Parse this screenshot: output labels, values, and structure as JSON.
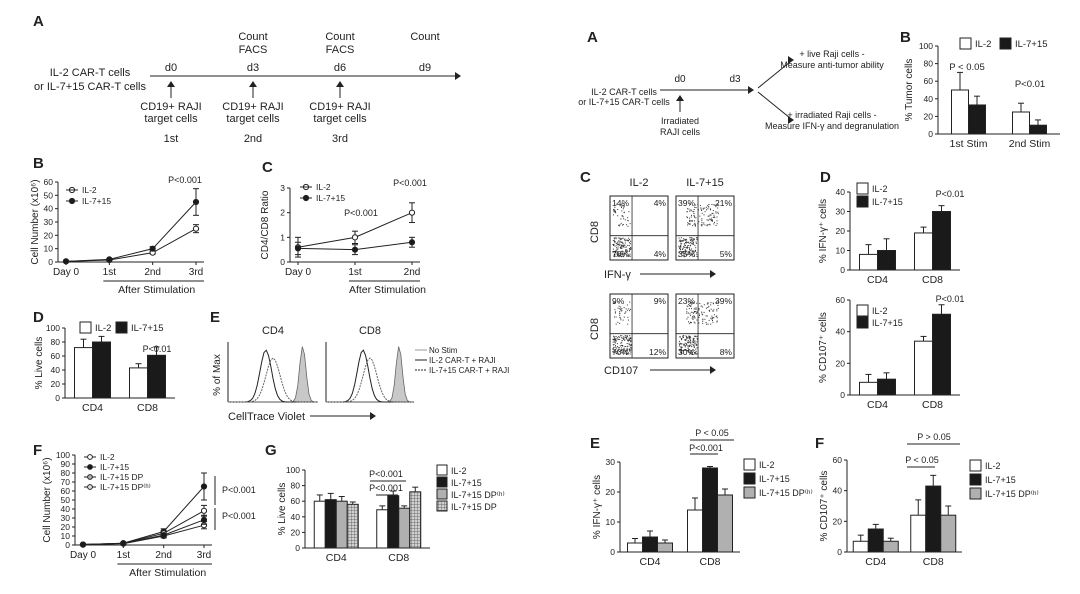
{
  "left": {
    "A": {
      "label": "A",
      "row1": "IL-2 CAR-T cells",
      "row2": "or IL-7+15 CAR-T cells",
      "days": [
        "d0",
        "d3",
        "d6",
        "d9"
      ],
      "tops": [
        "",
        "Count",
        "Count",
        "Count"
      ],
      "tops2": [
        "",
        "FACS",
        "FACS",
        ""
      ],
      "target1": "CD19+ RAJI",
      "target2": "target cells",
      "stims": [
        "1st",
        "2nd",
        "3rd"
      ]
    },
    "B": {
      "label": "B",
      "ylabel": "Cell Number (x10⁶)",
      "xsub": "After Stimulation",
      "legend": [
        "IL-2",
        "IL-7+15"
      ],
      "pval": "P<0.001",
      "chart_data": {
        "type": "line",
        "categories": [
          "Day 0",
          "1st",
          "2nd",
          "3rd"
        ],
        "yticks": [
          0,
          10,
          20,
          30,
          40,
          50,
          60
        ],
        "ylim": [
          0,
          60
        ],
        "series": [
          {
            "name": "IL-2",
            "values": [
              0.5,
              1.5,
              7,
              25
            ],
            "err": [
              0,
              0.5,
              1,
              3
            ]
          },
          {
            "name": "IL-7+15",
            "values": [
              0.5,
              2,
              10,
              45
            ],
            "err": [
              0,
              0.5,
              1.5,
              10
            ]
          }
        ]
      }
    },
    "C": {
      "label": "C",
      "ylabel": "CD4/CD8 Ratio",
      "xsub": "After Stimulation",
      "legend": [
        "IL-2",
        "IL-7+15"
      ],
      "pvals": [
        "P<0.001",
        "P<0.001"
      ],
      "chart_data": {
        "type": "line",
        "categories": [
          "Day 0",
          "1st",
          "2nd"
        ],
        "yticks": [
          0,
          1,
          2,
          3
        ],
        "ylim": [
          0,
          3
        ],
        "series": [
          {
            "name": "IL-2",
            "values": [
              0.6,
              1.0,
              2.0
            ],
            "err": [
              0.4,
              0.25,
              0.4
            ]
          },
          {
            "name": "IL-7+15",
            "values": [
              0.55,
              0.5,
              0.8
            ],
            "err": [
              0.25,
              0.2,
              0.2
            ]
          }
        ]
      }
    },
    "D": {
      "label": "D",
      "ylabel": "% Live cells",
      "legend": [
        "IL-2",
        "IL-7+15"
      ],
      "pval": "P<0.01",
      "chart_data": {
        "type": "bar",
        "categories": [
          "CD4",
          "CD8"
        ],
        "yticks": [
          0,
          20,
          40,
          60,
          80,
          100
        ],
        "ylim": [
          0,
          100
        ],
        "series": [
          {
            "name": "IL-2",
            "values": [
              72,
              43
            ],
            "err": [
              12,
              6
            ]
          },
          {
            "name": "IL-7+15",
            "values": [
              80,
              61
            ],
            "err": [
              8,
              12
            ]
          }
        ]
      }
    },
    "E": {
      "label": "E",
      "ylabel": "% of Max",
      "xlabel": "CellTrace Violet",
      "panels": [
        "CD4",
        "CD8"
      ],
      "legend": [
        "No Stim",
        "IL-2 CAR-T + RAJI",
        "IL-7+15 CAR-T + RAJI"
      ]
    },
    "F": {
      "label": "F",
      "ylabel": "Cell Number (x10⁶)",
      "xsub": "After Stimulation",
      "legend": [
        "IL-2",
        "IL-7+15",
        "IL-7+15 DP",
        "IL-7+15 DP⁽ʰ⁾"
      ],
      "pvals": [
        "P<0.001",
        "P<0.001"
      ],
      "chart_data": {
        "type": "line",
        "categories": [
          "Day 0",
          "1st",
          "2nd",
          "3rd"
        ],
        "yticks": [
          0,
          10,
          20,
          30,
          40,
          50,
          60,
          70,
          80,
          90,
          100
        ],
        "ylim": [
          0,
          100
        ],
        "series": [
          {
            "name": "IL-2",
            "values": [
              0.5,
              1.5,
              10,
              22
            ],
            "err": [
              0,
              0.5,
              2,
              4
            ]
          },
          {
            "name": "IL-7+15",
            "values": [
              0.5,
              2,
              15,
              65
            ],
            "err": [
              0,
              0.5,
              3,
              15
            ]
          },
          {
            "name": "IL-7+15 DP",
            "values": [
              0.5,
              2,
              13,
              38
            ],
            "err": [
              0,
              0.5,
              2,
              6
            ]
          },
          {
            "name": "IL-7+15 DP⁽ʰ⁾",
            "values": [
              0.5,
              1.8,
              11,
              28
            ],
            "err": [
              0,
              0.5,
              2,
              5
            ]
          }
        ]
      }
    },
    "G": {
      "label": "G",
      "ylabel": "% Live cells",
      "legend": [
        "IL-2",
        "IL-7+15",
        "IL-7+15 DP⁽ʰ⁾",
        "IL-7+15 DP"
      ],
      "pvals": [
        "P<0.001",
        "P<0.001"
      ],
      "chart_data": {
        "type": "bar",
        "categories": [
          "CD4",
          "CD8"
        ],
        "yticks": [
          0,
          20,
          40,
          60,
          80,
          100
        ],
        "ylim": [
          0,
          100
        ],
        "series": [
          {
            "name": "IL-2",
            "values": [
              60,
              49
            ],
            "err": [
              8,
              5
            ]
          },
          {
            "name": "IL-7+15",
            "values": [
              62,
              67
            ],
            "err": [
              8,
              6
            ]
          },
          {
            "name": "IL-7+15 DP⁽ʰ⁾",
            "values": [
              60,
              51
            ],
            "err": [
              6,
              3
            ]
          },
          {
            "name": "IL-7+15 DP",
            "values": [
              56,
              72
            ],
            "err": [
              3,
              6
            ]
          }
        ]
      }
    }
  },
  "right": {
    "A": {
      "label": "A",
      "row1": "IL-2 CAR-T cells",
      "row2": "or IL-7+15 CAR-T cells",
      "d0": "d0",
      "d3": "d3",
      "irr1": "Irradiated",
      "irr2": "RAJI cells",
      "top1": "+ live Raji cells -",
      "top2": "Measure anti-tumor ability",
      "bot1": "+ irradiated Raji cells -",
      "bot2": "Measure IFN-γ and degranulation"
    },
    "B": {
      "label": "B",
      "ylabel": "% Tumor cells",
      "legend": [
        "IL-2",
        "IL-7+15"
      ],
      "pvals": [
        "P < 0.05",
        "P<0.01"
      ],
      "chart_data": {
        "type": "bar",
        "categories": [
          "1st Stim",
          "2nd Stim"
        ],
        "yticks": [
          0,
          20,
          40,
          60,
          80,
          100
        ],
        "ylim": [
          0,
          100
        ],
        "series": [
          {
            "name": "IL-2",
            "values": [
              50,
              25
            ],
            "err": [
              20,
              10
            ]
          },
          {
            "name": "IL-7+15",
            "values": [
              33,
              10
            ],
            "err": [
              10,
              6
            ]
          }
        ]
      }
    },
    "C": {
      "label": "C",
      "cols": [
        "IL-2",
        "IL-7+15"
      ],
      "row1_ylabel": "CD8",
      "row1_xlabel": "IFN-γ",
      "row2_ylabel": "CD8",
      "row2_xlabel": "CD107",
      "quads": [
        [
          "14%",
          "4%",
          "78%",
          "4%"
        ],
        [
          "39%",
          "21%",
          "35%",
          "5%"
        ],
        [
          "9%",
          "9%",
          "70%",
          "12%"
        ],
        [
          "23%",
          "39%",
          "30%",
          "8%"
        ]
      ]
    },
    "D1": {
      "label": "D",
      "ylabel": "% IFN-γ⁺ cells",
      "legend": [
        "IL-2",
        "IL-7+15"
      ],
      "pval": "P<0.01",
      "chart_data": {
        "type": "bar",
        "categories": [
          "CD4",
          "CD8"
        ],
        "yticks": [
          0,
          10,
          20,
          30,
          40
        ],
        "ylim": [
          0,
          40
        ],
        "series": [
          {
            "name": "IL-2",
            "values": [
              8,
              19
            ],
            "err": [
              5,
              3
            ]
          },
          {
            "name": "IL-7+15",
            "values": [
              10,
              30
            ],
            "err": [
              6,
              3
            ]
          }
        ]
      }
    },
    "D2": {
      "ylabel": "% CD107⁺ cells",
      "legend": [
        "IL-2",
        "IL-7+15"
      ],
      "pval": "P<0.01",
      "chart_data": {
        "type": "bar",
        "categories": [
          "CD4",
          "CD8"
        ],
        "yticks": [
          0,
          20,
          40,
          60
        ],
        "ylim": [
          0,
          60
        ],
        "series": [
          {
            "name": "IL-2",
            "values": [
              8,
              34
            ],
            "err": [
              5,
              3
            ]
          },
          {
            "name": "IL-7+15",
            "values": [
              10,
              51
            ],
            "err": [
              4,
              6
            ]
          }
        ]
      }
    },
    "E": {
      "label": "E",
      "ylabel": "% IFN-γ⁺ cells",
      "legend": [
        "IL-2",
        "IL-7+15",
        "IL-7+15 DP⁽ʰ⁾"
      ],
      "pvals": [
        "P<0.001",
        "P < 0.05"
      ],
      "chart_data": {
        "type": "bar",
        "categories": [
          "CD4",
          "CD8"
        ],
        "yticks": [
          0,
          10,
          20,
          30
        ],
        "ylim": [
          0,
          30
        ],
        "series": [
          {
            "name": "IL-2",
            "values": [
              3,
              14
            ],
            "err": [
              1.5,
              4
            ]
          },
          {
            "name": "IL-7+15",
            "values": [
              5,
              28
            ],
            "err": [
              2,
              0.5
            ]
          },
          {
            "name": "IL-7+15 DP⁽ʰ⁾",
            "values": [
              3,
              19
            ],
            "err": [
              1,
              2
            ]
          }
        ]
      }
    },
    "F": {
      "label": "F",
      "ylabel": "% CD107⁺ cells",
      "legend": [
        "IL-2",
        "IL-7+15",
        "IL-7+15 DP⁽ʰ⁾"
      ],
      "pvals": [
        "P < 0.05",
        "P > 0.05"
      ],
      "chart_data": {
        "type": "bar",
        "categories": [
          "CD4",
          "CD8"
        ],
        "yticks": [
          0,
          20,
          40,
          60
        ],
        "ylim": [
          0,
          60
        ],
        "series": [
          {
            "name": "IL-2",
            "values": [
              7,
              24
            ],
            "err": [
              4,
              10
            ]
          },
          {
            "name": "IL-7+15",
            "values": [
              15,
              43
            ],
            "err": [
              3,
              7
            ]
          },
          {
            "name": "IL-7+15 DP⁽ʰ⁾",
            "values": [
              7,
              24
            ],
            "err": [
              2,
              6
            ]
          }
        ]
      }
    }
  },
  "colors": {
    "ink": "#222222",
    "fill1": "#ffffff",
    "fill2": "#1a1a1a",
    "fill3": "#b0b0b0",
    "hist_fill": "#c8c8c8"
  }
}
